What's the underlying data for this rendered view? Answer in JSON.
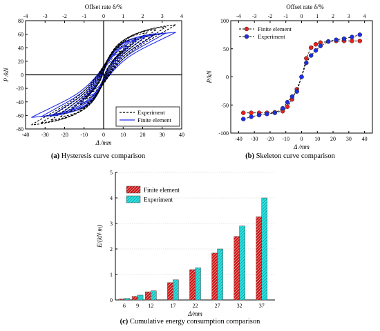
{
  "chart_data": [
    {
      "id": "a",
      "type": "line",
      "caption_letter": "(a)",
      "caption_text": " Hysteresis curve comparison",
      "top_axis_label": "Offset rate δ/%",
      "top_ticks": [
        "-4",
        "-3",
        "-2",
        "-1",
        "0",
        "1",
        "2",
        "3",
        "4"
      ],
      "top_tick_values": [
        -4,
        -3,
        -2,
        -1,
        0,
        1,
        2,
        3,
        4
      ],
      "xlabel": "Δ /mm",
      "ylabel": "P /kN",
      "xlim": [
        -40,
        40
      ],
      "ylim": [
        -80,
        80
      ],
      "x_ticks": [
        -40,
        -30,
        -20,
        -10,
        0,
        10,
        20,
        30,
        40
      ],
      "y_ticks": [
        -80,
        -60,
        -40,
        -20,
        0,
        20,
        40,
        60,
        80
      ],
      "legend_position": "bottom-right",
      "series": [
        {
          "name": "Experiment",
          "color": "#000000",
          "style": "dashed",
          "loops": [
            {
              "amp": 6,
              "peak": 25
            },
            {
              "amp": 9,
              "peak": 35
            },
            {
              "amp": 12,
              "peak": 44
            },
            {
              "amp": 17,
              "peak": 54
            },
            {
              "amp": 22,
              "peak": 62
            },
            {
              "amp": 27,
              "peak": 67
            },
            {
              "amp": 32,
              "peak": 71
            },
            {
              "amp": 37,
              "peak": 74
            }
          ]
        },
        {
          "name": "Finite element",
          "color": "#1f2de6",
          "style": "solid",
          "loops": [
            {
              "amp": 6,
              "peak": 22
            },
            {
              "amp": 9,
              "peak": 32
            },
            {
              "amp": 12,
              "peak": 42
            },
            {
              "amp": 17,
              "peak": 52
            },
            {
              "amp": 22,
              "peak": 58
            },
            {
              "amp": 27,
              "peak": 61
            },
            {
              "amp": 32,
              "peak": 62
            },
            {
              "amp": 37,
              "peak": 63
            }
          ]
        }
      ]
    },
    {
      "id": "b",
      "type": "line",
      "caption_letter": "(b)",
      "caption_text": " Skeleton curve comparison",
      "top_axis_label": "Offset rate δ/%",
      "top_ticks": [
        "-4",
        "-3",
        "-2",
        "-1",
        "0",
        "1",
        "2",
        "3",
        "4"
      ],
      "top_tick_values": [
        -4,
        -3,
        -2,
        -1,
        0,
        1,
        2,
        3,
        4
      ],
      "xlabel": "Δ /mm",
      "ylabel": "P/kN",
      "xlim": [
        -45,
        45
      ],
      "ylim": [
        -100,
        100
      ],
      "x_ticks": [
        -40,
        -30,
        -20,
        -10,
        0,
        10,
        20,
        30,
        40
      ],
      "y_ticks": [
        -100,
        -50,
        0,
        50,
        100
      ],
      "legend_position": "top-left",
      "series": [
        {
          "name": "Finite element",
          "color": "#e8221f",
          "x": [
            -37,
            -32,
            -27,
            -22,
            -17,
            -12,
            -9,
            -6,
            -3,
            0,
            3,
            6,
            9,
            12,
            17,
            22,
            27,
            32,
            37
          ],
          "y": [
            -64,
            -64,
            -64,
            -64,
            -63,
            -61,
            -53,
            -40,
            -22,
            0,
            33,
            52,
            58,
            61,
            63,
            64,
            64,
            64,
            64
          ]
        },
        {
          "name": "Experiment",
          "color": "#1f2de6",
          "x": [
            -37,
            -32,
            -27,
            -22,
            -17,
            -12,
            -9,
            -6,
            -3,
            0,
            3,
            6,
            9,
            12,
            17,
            22,
            27,
            32,
            37
          ],
          "y": [
            -75,
            -71,
            -68,
            -66,
            -64,
            -56,
            -45,
            -35,
            -26,
            0,
            25,
            38,
            47,
            55,
            63,
            66,
            68,
            71,
            75
          ]
        }
      ]
    },
    {
      "id": "c",
      "type": "bar",
      "caption_letter": "(c)",
      "caption_text": " Cumulative energy consumption comparison",
      "xlabel": "Δ/mm",
      "ylabel": "E/(kN·m)",
      "ylim": [
        0,
        5
      ],
      "y_ticks": [
        0,
        1,
        2,
        3,
        4,
        5
      ],
      "categories": [
        "6",
        "9",
        "12",
        "17",
        "22",
        "27",
        "32",
        "37"
      ],
      "category_values": [
        6,
        9,
        12,
        17,
        22,
        27,
        32,
        37
      ],
      "xlim": [
        4,
        40
      ],
      "grid": true,
      "legend_position": "top-left",
      "series": [
        {
          "name": "Finite element",
          "color": "#cc1616",
          "hatch": "#ffffff",
          "values": [
            0.04,
            0.14,
            0.32,
            0.68,
            1.19,
            1.84,
            2.49,
            3.26
          ]
        },
        {
          "name": "Experiment",
          "color": "#2ee0e0",
          "hatch": "#0a7a7a",
          "values": [
            0.06,
            0.19,
            0.36,
            0.79,
            1.26,
            2.0,
            2.9,
            4.0
          ]
        }
      ]
    }
  ]
}
